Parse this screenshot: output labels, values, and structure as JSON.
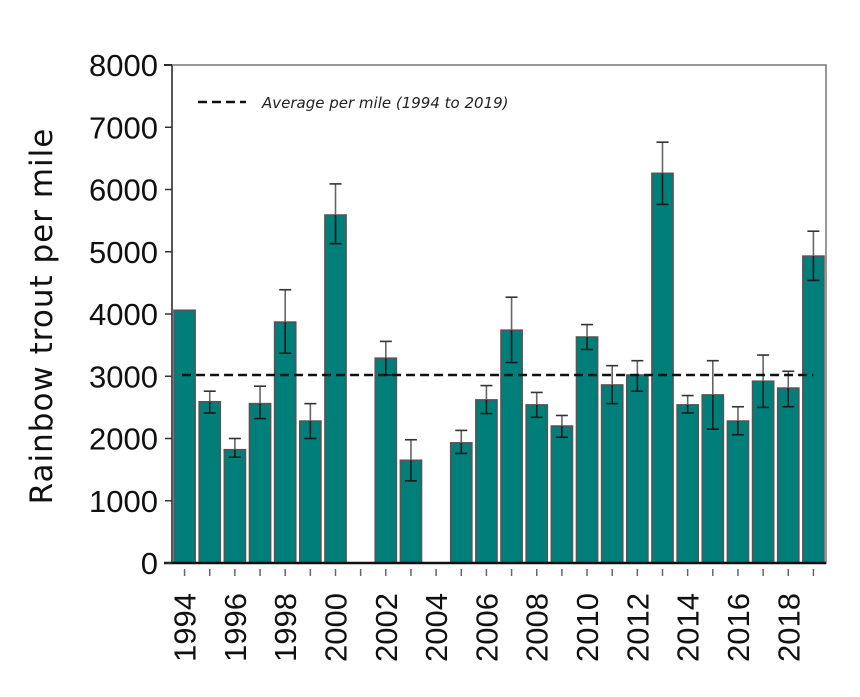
{
  "chart_data": {
    "type": "bar",
    "title": "",
    "xlabel": "",
    "ylabel": "Rainbow trout per mile",
    "ylim": [
      0,
      8000
    ],
    "yticks": [
      0,
      1000,
      2000,
      3000,
      4000,
      5000,
      6000,
      7000,
      8000
    ],
    "xtick_labels": [
      "1994",
      "1996",
      "1998",
      "2000",
      "2002",
      "2004",
      "2006",
      "2008",
      "2010",
      "2012",
      "2014",
      "2016",
      "2018"
    ],
    "categories": [
      "1994",
      "1995",
      "1996",
      "1997",
      "1998",
      "1999",
      "2000",
      "2001",
      "2002",
      "2003",
      "2004",
      "2005",
      "2006",
      "2007",
      "2008",
      "2009",
      "2010",
      "2011",
      "2012",
      "2013",
      "2014",
      "2015",
      "2016",
      "2017",
      "2018",
      "2019"
    ],
    "series": [
      {
        "name": "Rainbow trout per mile",
        "color": "#007f7a",
        "values": [
          4060,
          2590,
          1820,
          2560,
          3870,
          2280,
          5590,
          null,
          3290,
          1650,
          null,
          1930,
          2620,
          3740,
          2540,
          2200,
          3630,
          2860,
          3020,
          6260,
          2540,
          2700,
          2280,
          2920,
          2810,
          4930
        ],
        "error_low": [
          null,
          2410,
          1700,
          2320,
          3370,
          2000,
          5130,
          null,
          3020,
          1320,
          null,
          1760,
          2400,
          3220,
          2340,
          2020,
          3430,
          2560,
          2760,
          5760,
          2410,
          2150,
          2060,
          2500,
          2510,
          4540
        ],
        "error_high": [
          null,
          2760,
          2000,
          2840,
          4390,
          2560,
          6090,
          null,
          3560,
          1980,
          null,
          2130,
          2850,
          4270,
          2740,
          2370,
          3830,
          3170,
          3250,
          6760,
          2690,
          3250,
          2510,
          3340,
          3080,
          5330
        ]
      }
    ],
    "reference_line": {
      "label": "Average per mile (1994 to 2019)",
      "value": 3020,
      "style": "dashed"
    },
    "legend": {
      "position": "top-left",
      "entries": [
        "Average per mile (1994 to 2019)"
      ]
    },
    "grid": false
  }
}
